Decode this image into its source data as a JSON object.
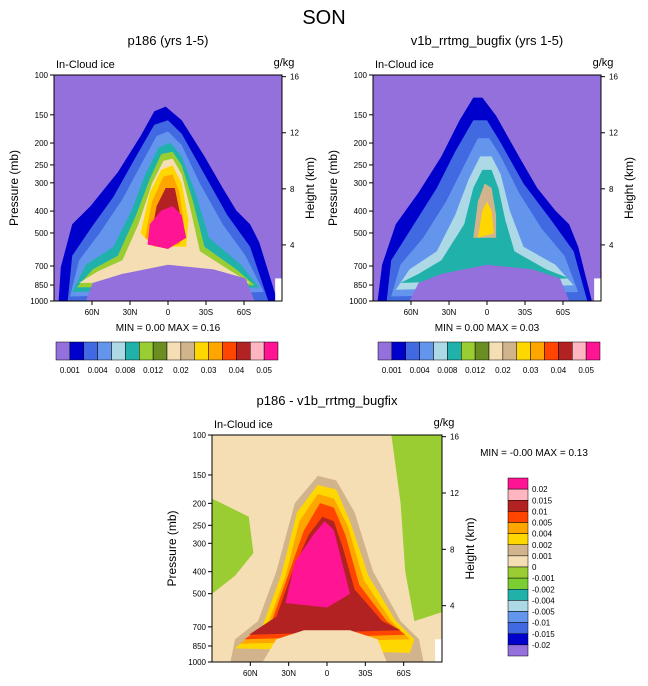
{
  "figure_title": "SON",
  "colors": {
    "background_field": "#9370DB",
    "frame": "#000000",
    "panel_bg": "#ffffff"
  },
  "palette": [
    "#9370DB",
    "#0000CD",
    "#4169E1",
    "#6495ED",
    "#ADD8E6",
    "#20B2AA",
    "#9ACD32",
    "#6B8E23",
    "#F5DEB3",
    "#D2B48C",
    "#FFD700",
    "#FFA500",
    "#FF4500",
    "#B22222",
    "#FFB6C1",
    "#FF1493"
  ],
  "chart_data": [
    {
      "id": "panel-a",
      "type": "contour",
      "title": "p186 (yrs 1-5)",
      "left_label": "In-Cloud ice",
      "units_label": "g/kg",
      "ylabel": "Pressure (mb)",
      "ylabel_right": "Height (km)",
      "y_ticks": [
        "100",
        "150",
        "200",
        "250",
        "300",
        "400",
        "500",
        "700",
        "850",
        "1000"
      ],
      "y_tick_values": [
        100,
        150,
        200,
        250,
        300,
        400,
        500,
        700,
        850,
        1000
      ],
      "height_ticks": [
        "16",
        "12",
        "8",
        "4"
      ],
      "height_tick_values": [
        16,
        12,
        8,
        4
      ],
      "x_ticks": [
        "60N",
        "30N",
        "0",
        "30S",
        "60S"
      ],
      "x_tick_values": [
        60,
        30,
        0,
        -30,
        -60
      ],
      "xlim": [
        90,
        -90
      ],
      "ylim": [
        100,
        1000
      ],
      "stats": "MIN =  0.00  MAX =  0.16",
      "colorbar_labels": [
        "0.001",
        "0.004",
        "0.008",
        "0.012",
        "0.02",
        "0.03",
        "0.04",
        "0.05"
      ],
      "colorbar_colors": [
        "#9370DB",
        "#0000CD",
        "#4169E1",
        "#6495ED",
        "#ADD8E6",
        "#20B2AA",
        "#9ACD32",
        "#6B8E23",
        "#F5DEB3",
        "#D2B48C",
        "#FFD700",
        "#FFA500",
        "#FF4500",
        "#B22222",
        "#FFB6C1",
        "#FF1493"
      ],
      "colorbar_orientation": "horizontal"
    },
    {
      "id": "panel-b",
      "type": "contour",
      "title": "v1b_rrtmg_bugfix (yrs 1-5)",
      "left_label": "In-Cloud ice",
      "units_label": "g/kg",
      "ylabel": "Pressure (mb)",
      "ylabel_right": "Height (km)",
      "y_ticks": [
        "100",
        "150",
        "200",
        "250",
        "300",
        "400",
        "500",
        "700",
        "850",
        "1000"
      ],
      "y_tick_values": [
        100,
        150,
        200,
        250,
        300,
        400,
        500,
        700,
        850,
        1000
      ],
      "height_ticks": [
        "16",
        "12",
        "8",
        "4"
      ],
      "height_tick_values": [
        16,
        12,
        8,
        4
      ],
      "x_ticks": [
        "60N",
        "30N",
        "0",
        "30S",
        "60S"
      ],
      "x_tick_values": [
        60,
        30,
        0,
        -30,
        -60
      ],
      "xlim": [
        90,
        -90
      ],
      "ylim": [
        100,
        1000
      ],
      "stats": "MIN =  0.00  MAX =  0.03",
      "colorbar_labels": [
        "0.001",
        "0.004",
        "0.008",
        "0.012",
        "0.02",
        "0.03",
        "0.04",
        "0.05"
      ],
      "colorbar_colors": [
        "#9370DB",
        "#0000CD",
        "#4169E1",
        "#6495ED",
        "#ADD8E6",
        "#20B2AA",
        "#9ACD32",
        "#6B8E23",
        "#F5DEB3",
        "#D2B48C",
        "#FFD700",
        "#FFA500",
        "#FF4500",
        "#B22222",
        "#FFB6C1",
        "#FF1493"
      ],
      "colorbar_orientation": "horizontal"
    },
    {
      "id": "panel-c",
      "type": "contour",
      "title": "p186 - v1b_rrtmg_bugfix",
      "left_label": "In-Cloud ice",
      "units_label": "g/kg",
      "ylabel": "Pressure (mb)",
      "ylabel_right": "Height (km)",
      "y_ticks": [
        "100",
        "150",
        "200",
        "250",
        "300",
        "400",
        "500",
        "700",
        "850",
        "1000"
      ],
      "y_tick_values": [
        100,
        150,
        200,
        250,
        300,
        400,
        500,
        700,
        850,
        1000
      ],
      "height_ticks": [
        "16",
        "12",
        "8",
        "4"
      ],
      "height_tick_values": [
        16,
        12,
        8,
        4
      ],
      "x_ticks": [
        "60N",
        "30N",
        "0",
        "30S",
        "60S"
      ],
      "x_tick_values": [
        60,
        30,
        0,
        -30,
        -60
      ],
      "xlim": [
        90,
        -90
      ],
      "ylim": [
        100,
        1000
      ],
      "stats": "MIN = -0.00  MAX =  0.13",
      "colorbar_labels": [
        "0.02",
        "0.015",
        "0.01",
        "0.005",
        "0.004",
        "0.002",
        "0.001",
        "0",
        "-0.001",
        "-0.002",
        "-0.004",
        "-0.005",
        "-0.01",
        "-0.015",
        "-0.02"
      ],
      "colorbar_colors": [
        "#FF1493",
        "#FFB6C1",
        "#B22222",
        "#FF4500",
        "#FFA500",
        "#FFD700",
        "#D2B48C",
        "#F5DEB3",
        "#9ACD32",
        "#7CCD32",
        "#20B2AA",
        "#ADD8E6",
        "#6495ED",
        "#4169E1",
        "#0000CD",
        "#9370DB"
      ],
      "colorbar_orientation": "vertical"
    }
  ]
}
